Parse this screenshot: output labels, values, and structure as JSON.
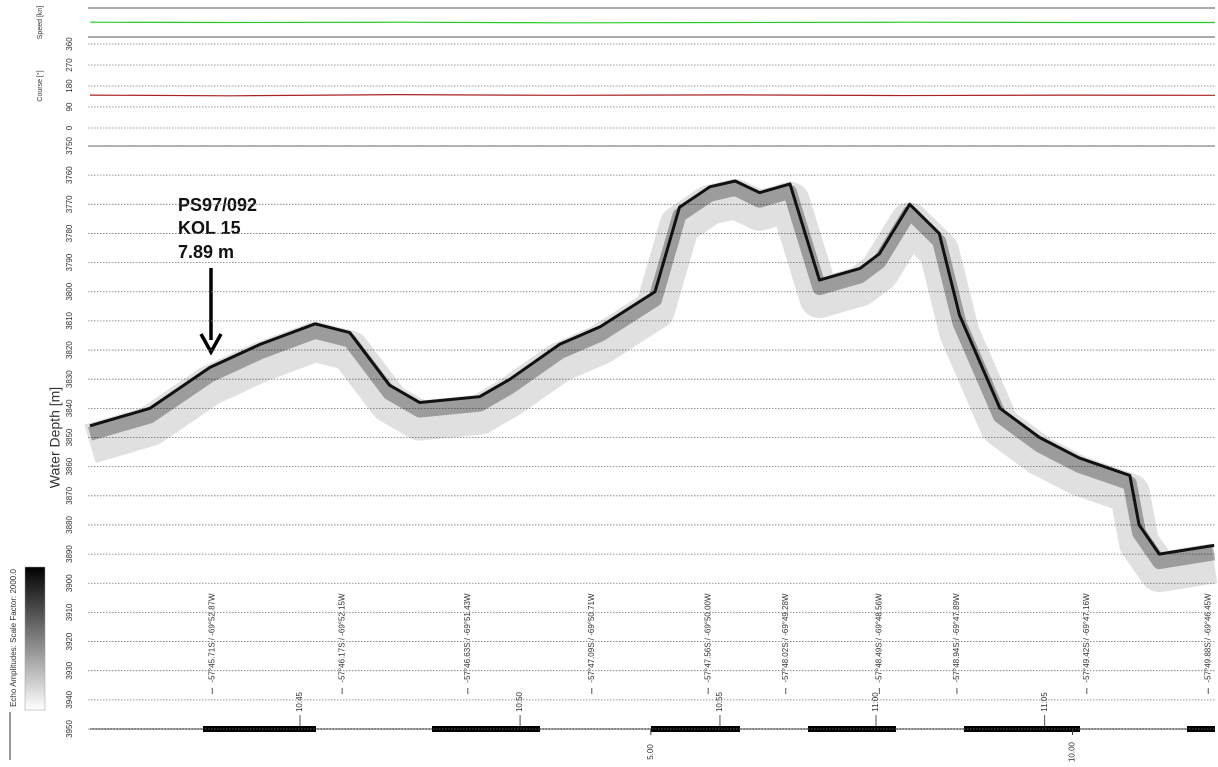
{
  "chart_data": [
    {
      "type": "line",
      "ylabel": "Speed [kn]",
      "ylim": [
        0,
        10
      ],
      "x": [
        -1.65,
        0,
        2,
        4,
        6,
        8,
        10,
        11.69
      ],
      "series": [
        {
          "color": "#22cc22",
          "values": [
            5.1,
            5.0,
            5.1,
            4.9,
            5.0,
            5.1,
            5.0,
            5.0
          ]
        }
      ]
    },
    {
      "type": "line",
      "ylabel": "Course [°]",
      "ylim": [
        0,
        360
      ],
      "yticks": [
        0,
        90,
        180,
        270,
        360
      ],
      "grid": true,
      "x": [
        -1.65,
        0,
        2,
        4,
        6,
        8,
        10,
        11.69
      ],
      "series": [
        {
          "color": "#aa2222",
          "values": [
            141,
            138,
            143,
            140,
            142,
            139,
            141,
            140
          ]
        }
      ]
    },
    {
      "type": "echogram",
      "ylabel": "Water Depth [m]",
      "ylim": [
        3950,
        3750
      ],
      "yticks": [
        3750,
        3760,
        3770,
        3780,
        3790,
        3800,
        3810,
        3820,
        3830,
        3840,
        3850,
        3860,
        3870,
        3880,
        3890,
        3900,
        3910,
        3920,
        3930,
        3940,
        3950
      ],
      "grid": true,
      "xlim": [
        -1.65,
        11.69
      ],
      "xticks": [
        {
          "value": 5,
          "label": "5.00"
        },
        {
          "value": 10,
          "label": "10.00"
        }
      ],
      "time_ticks": [
        {
          "value": 0.84,
          "label": "10:45"
        },
        {
          "value": 3.45,
          "label": "10:50"
        },
        {
          "value": 5.82,
          "label": "10:55"
        },
        {
          "value": 7.67,
          "label": "11:00"
        },
        {
          "value": 9.67,
          "label": "11:05"
        }
      ],
      "position_ticks": [
        {
          "value": -0.2,
          "label": "-57°45.71S / -69°52.87W"
        },
        {
          "value": 1.34,
          "label": "-57°46.17S / -69°52.15W"
        },
        {
          "value": 2.83,
          "label": "-57°46.63S / -69°51.43W"
        },
        {
          "value": 4.3,
          "label": "-57°47.09S / -69°50.71W"
        },
        {
          "value": 5.68,
          "label": "-57°47.56S / -69°50.00W"
        },
        {
          "value": 6.6,
          "label": "-57°48.02S / -69°49.28W"
        },
        {
          "value": 7.71,
          "label": "-57°48.49S / -69°48.56W"
        },
        {
          "value": 8.63,
          "label": "-57°48.94S / -69°47.89W"
        },
        {
          "value": 10.17,
          "label": "-57°49.42S / -69°47.16W"
        },
        {
          "value": 11.61,
          "label": "-57°49.88S / -69°46.45W"
        }
      ],
      "x": [
        -1.65,
        -0.94,
        -0.23,
        0.37,
        1.02,
        1.43,
        1.9,
        2.26,
        2.97,
        3.33,
        3.92,
        4.4,
        5.05,
        5.34,
        5.7,
        6.0,
        6.29,
        6.65,
        7.0,
        7.48,
        7.71,
        8.07,
        8.42,
        8.66,
        9.14,
        9.61,
        10.08,
        10.68,
        10.79,
        11.03,
        11.68
      ],
      "series": [
        {
          "color": "#111111",
          "values": [
            3846,
            3840,
            3826,
            3818,
            3811,
            3814,
            3832,
            3838,
            3836,
            3830,
            3818,
            3812,
            3800,
            3771,
            3764,
            3762,
            3766,
            3763,
            3796,
            3792,
            3787,
            3770,
            3780,
            3808,
            3840,
            3850,
            3857,
            3863,
            3880,
            3890,
            3887
          ]
        }
      ],
      "annotation": [
        "PS97/092",
        "KOL 15",
        "7.89 m"
      ],
      "colorbar_label": "Echo Amplitudes:  Scale Factor:  2000.0"
    }
  ]
}
